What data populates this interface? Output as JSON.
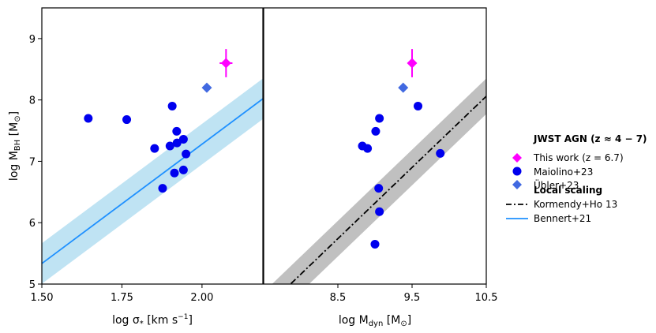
{
  "chart_data": [
    {
      "type": "scatter",
      "panel": "left",
      "xlabel": {
        "main": "log σ",
        "sub": "*",
        "unit": " [km s",
        "sup": "−1",
        "end": "]"
      },
      "ylabel": {
        "main": "log M",
        "sub": "BH",
        "unit": " [M",
        "sub2": "⊙",
        "end": "]"
      },
      "xlim": [
        1.5,
        2.19
      ],
      "ylim": [
        5.0,
        9.5
      ],
      "xticks": [
        1.5,
        1.75,
        2.0
      ],
      "xtick_labels": [
        "1.50",
        "1.75",
        "2.00"
      ],
      "yticks": [
        5,
        6,
        7,
        8,
        9
      ],
      "ytick_labels": [
        "5",
        "6",
        "7",
        "8",
        "9"
      ],
      "relation": {
        "name": "Bennert+21",
        "slope": 3.89,
        "intercept": -0.5,
        "scatter": 0.33
      },
      "series": [
        {
          "name": "This work (z = 6.7)",
          "marker": "diamond",
          "points": [
            {
              "x": 2.075,
              "y": 8.6,
              "xerr": 0.02,
              "yerr": 0.23
            }
          ]
        },
        {
          "name": "Übler+23",
          "marker": "diamond",
          "points": [
            {
              "x": 2.015,
              "y": 8.2
            }
          ]
        },
        {
          "name": "Maiolino+23",
          "marker": "circle",
          "points": [
            {
              "x": 1.645,
              "y": 7.7
            },
            {
              "x": 1.765,
              "y": 7.68
            },
            {
              "x": 1.852,
              "y": 7.21
            },
            {
              "x": 1.877,
              "y": 6.56
            },
            {
              "x": 1.9,
              "y": 7.25
            },
            {
              "x": 1.907,
              "y": 7.9
            },
            {
              "x": 1.914,
              "y": 6.81
            },
            {
              "x": 1.921,
              "y": 7.49
            },
            {
              "x": 1.922,
              "y": 7.3
            },
            {
              "x": 1.942,
              "y": 7.36
            },
            {
              "x": 1.942,
              "y": 6.86
            },
            {
              "x": 1.95,
              "y": 7.12
            }
          ]
        }
      ]
    },
    {
      "type": "scatter",
      "panel": "right",
      "xlabel": {
        "main": "log M",
        "sub": "dyn",
        "unit": " [M",
        "sub2": "⊙",
        "end": "]"
      },
      "xlim": [
        7.5,
        10.5
      ],
      "ylim": [
        5.0,
        9.5
      ],
      "xticks": [
        8.5,
        9.5,
        10.5
      ],
      "xtick_labels": [
        "8.5",
        "9.5",
        "10.5"
      ],
      "relation": {
        "name": "Kormendy+Ho 13",
        "slope": 1.16,
        "intercept": -4.12,
        "scatter": 0.29
      },
      "series": [
        {
          "name": "This work (z = 6.7)",
          "marker": "diamond",
          "points": [
            {
              "x": 9.5,
              "y": 8.6,
              "yerr": 0.23
            }
          ]
        },
        {
          "name": "Übler+23",
          "marker": "diamond",
          "points": [
            {
              "x": 9.38,
              "y": 8.2
            }
          ]
        },
        {
          "name": "Maiolino+23",
          "marker": "circle",
          "points": [
            {
              "x": 8.83,
              "y": 7.25
            },
            {
              "x": 8.9,
              "y": 7.21
            },
            {
              "x": 9.0,
              "y": 5.65
            },
            {
              "x": 9.01,
              "y": 7.49
            },
            {
              "x": 9.05,
              "y": 6.56
            },
            {
              "x": 9.06,
              "y": 7.7
            },
            {
              "x": 9.06,
              "y": 6.18
            },
            {
              "x": 9.58,
              "y": 7.9
            },
            {
              "x": 9.88,
              "y": 7.13
            }
          ]
        }
      ]
    }
  ],
  "colors": {
    "this_work": "#ff00ff",
    "maiolino": "#0000ee",
    "ubler": "#4169e1",
    "bennert": "#1e90ff",
    "bennert_band": "#bfe3f3",
    "kormendy": "#000000",
    "kormendy_band": "#c0c0c0"
  },
  "legend": {
    "group1_title": "JWST AGN (z ≈ 4 − 7)",
    "this_work": "This work (z = 6.7)",
    "maiolino": "Maiolino+23",
    "ubler": "Übler+23",
    "group2_title": "Local scaling",
    "kormendy": "Kormendy+Ho 13",
    "bennert": "Bennert+21"
  }
}
